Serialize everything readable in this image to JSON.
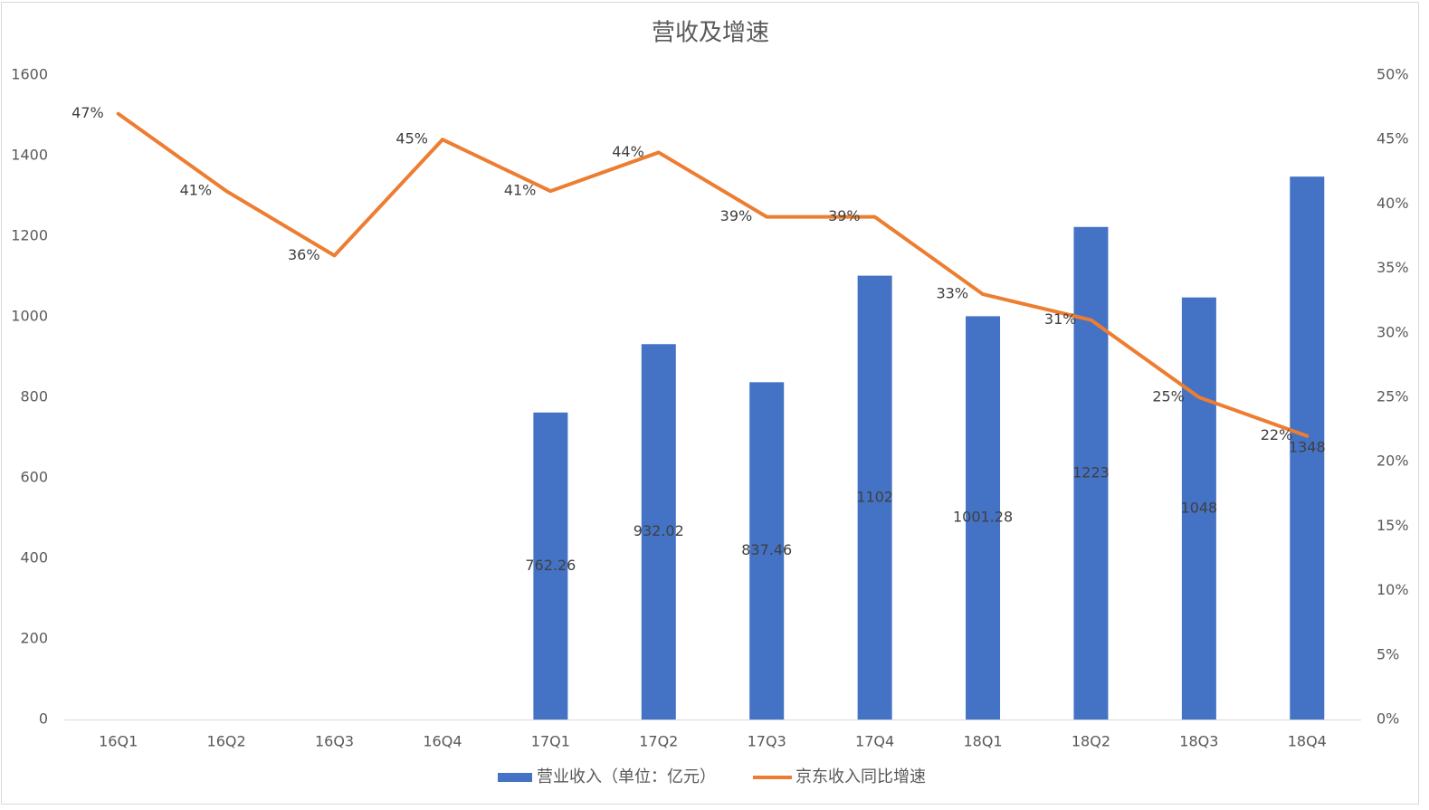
{
  "chart_data": {
    "type": "bar",
    "title": "营收及增速",
    "categories": [
      "16Q1",
      "16Q2",
      "16Q3",
      "16Q4",
      "17Q1",
      "17Q2",
      "17Q3",
      "17Q4",
      "18Q1",
      "18Q2",
      "18Q3",
      "18Q4"
    ],
    "series": [
      {
        "name": "营业收入（单位：亿元）",
        "type": "bar",
        "axis": "left",
        "color": "#4472C4",
        "values": [
          null,
          null,
          null,
          null,
          762.26,
          932.02,
          837.46,
          1102,
          1001.28,
          1223,
          1048,
          1348
        ],
        "labels": [
          null,
          null,
          null,
          null,
          "762.26",
          "932.02",
          "837.46",
          "1102",
          "1001.28",
          "1223",
          "1048",
          "1348"
        ]
      },
      {
        "name": "京东收入同比增速",
        "type": "line",
        "axis": "right",
        "color": "#ED7D31",
        "values": [
          0.47,
          0.41,
          0.36,
          0.45,
          0.41,
          0.44,
          0.39,
          0.39,
          0.33,
          0.31,
          0.25,
          0.22
        ],
        "labels": [
          "47%",
          "41%",
          "36%",
          "45%",
          "41%",
          "44%",
          "39%",
          "39%",
          "33%",
          "31%",
          "25%",
          "22%"
        ]
      }
    ],
    "ylim": [
      0,
      1600
    ],
    "yticks": [
      "0",
      "200",
      "400",
      "600",
      "800",
      "1000",
      "1200",
      "1400",
      "1600"
    ],
    "y2lim": [
      0,
      0.5
    ],
    "y2ticks": [
      "0%",
      "5%",
      "10%",
      "15%",
      "20%",
      "25%",
      "30%",
      "35%",
      "40%",
      "45%",
      "50%"
    ],
    "grid": false,
    "legend_position": "bottom"
  }
}
